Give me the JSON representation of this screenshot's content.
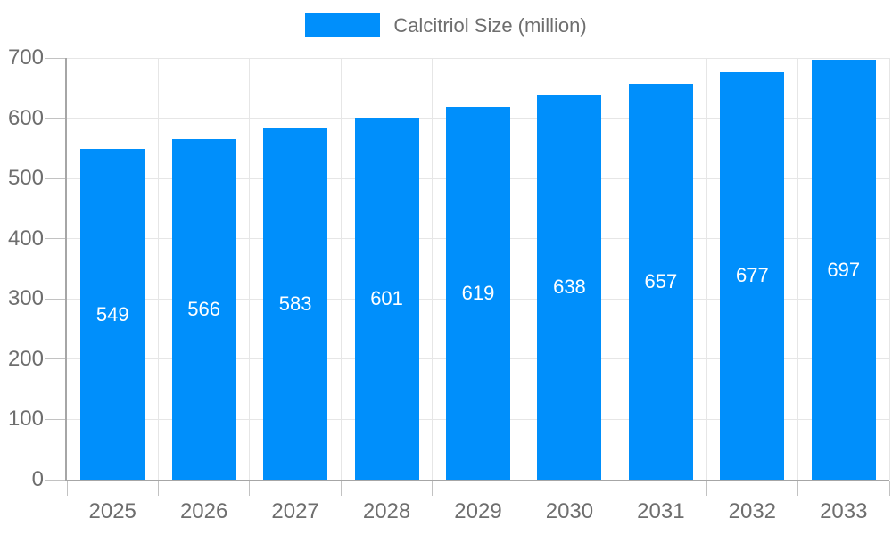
{
  "chart_data": {
    "type": "bar",
    "title": "",
    "legend_entries": [
      "Calcitriol Size (million)"
    ],
    "legend_position": "top",
    "categories": [
      "2025",
      "2026",
      "2027",
      "2028",
      "2029",
      "2030",
      "2031",
      "2032",
      "2033"
    ],
    "series": [
      {
        "name": "Calcitriol Size (million)",
        "values": [
          549,
          566,
          583,
          601,
          619,
          638,
          657,
          677,
          697
        ]
      }
    ],
    "value_labels_shown": true,
    "xlabel": "",
    "ylabel": "",
    "ylim": [
      0,
      700
    ],
    "yticks": [
      0,
      100,
      200,
      300,
      400,
      500,
      600,
      700
    ],
    "grid": "both",
    "colors": {
      "bar": "#008FFB",
      "value_label": "#ffffff",
      "axis_label": "#6e6e6e",
      "axis_line": "#a6a6a6",
      "gridline": "#e6e6e6"
    }
  }
}
